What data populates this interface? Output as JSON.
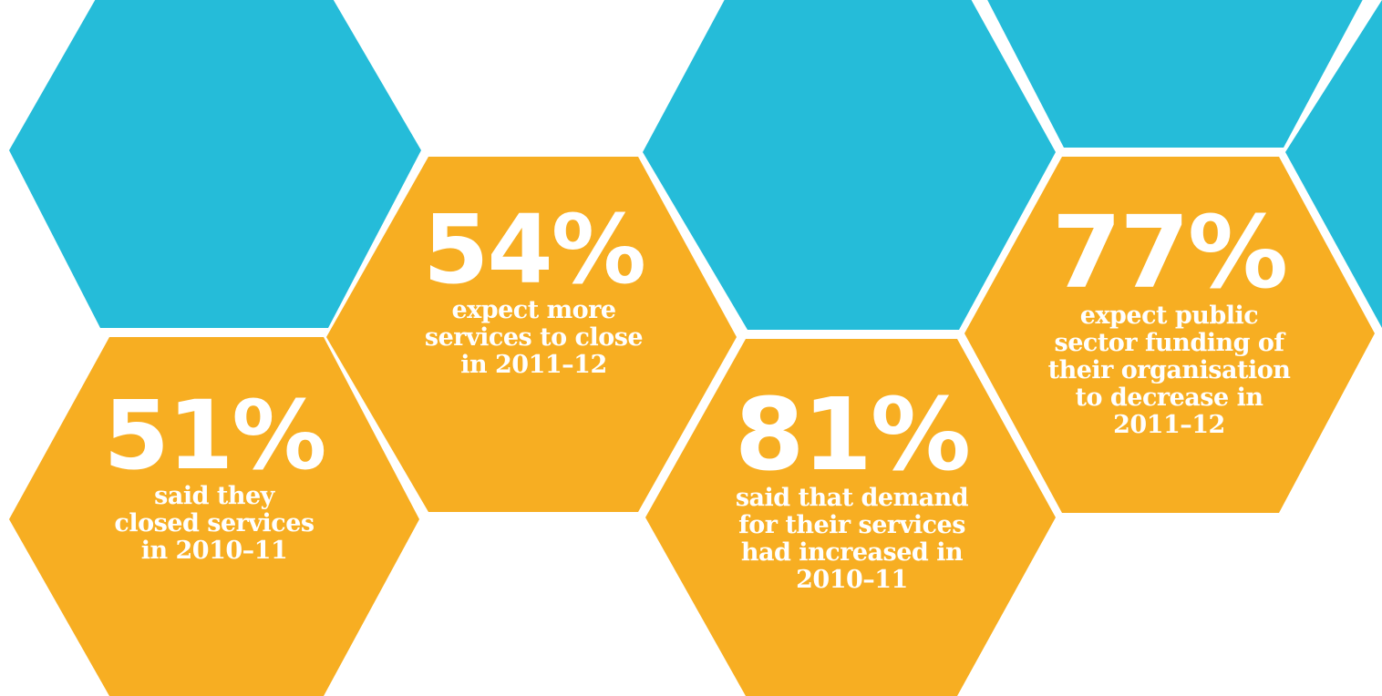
{
  "colors": {
    "teal": "#25bcd9",
    "orange": "#f7ae22",
    "text": "#ffffff",
    "background": "#ffffff"
  },
  "stats": [
    {
      "value": "51%",
      "description": "said they\nclosed services\nin 2010–11"
    },
    {
      "value": "54%",
      "description": "expect more\nservices to close\nin 2011–12"
    },
    {
      "value": "81%",
      "description": "said that demand\nfor their services\nhad increased in\n2010–11"
    },
    {
      "value": "77%",
      "description": "expect public\nsector funding of\ntheir organisation\nto decrease in\n2011–12"
    }
  ]
}
